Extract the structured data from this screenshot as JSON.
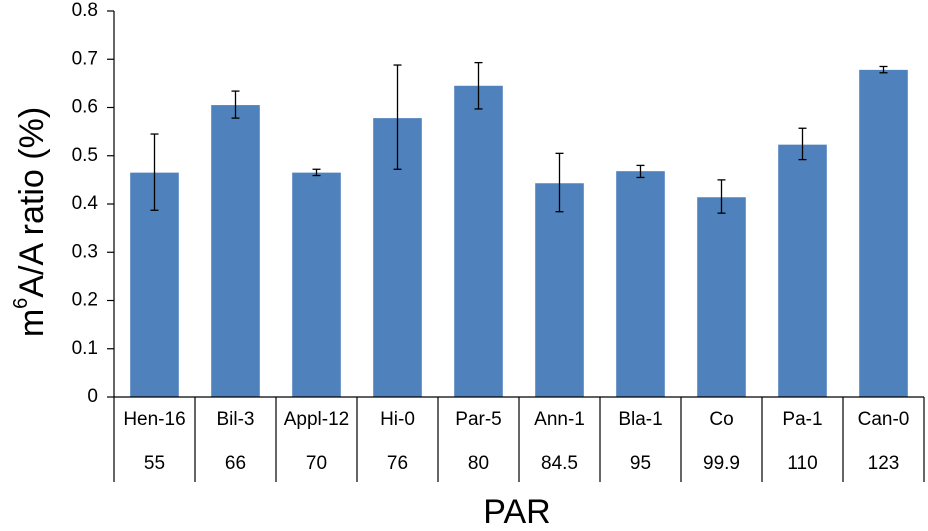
{
  "chart_data": {
    "type": "bar",
    "categories": [
      "Hen-16",
      "Bil-3",
      "Appl-12",
      "Hi-0",
      "Par-5",
      "Ann-1",
      "Bla-1",
      "Co",
      "Pa-1",
      "Can-0"
    ],
    "par_values": [
      "55",
      "66",
      "70",
      "76",
      "80",
      "84.5",
      "95",
      "99.9",
      "110",
      "123"
    ],
    "series": [
      {
        "values": [
          0.465,
          0.605,
          0.465,
          0.578,
          0.645,
          0.443,
          0.468,
          0.414,
          0.523,
          0.678
        ],
        "error_low": [
          0.387,
          0.578,
          0.459,
          0.472,
          0.597,
          0.384,
          0.455,
          0.381,
          0.492,
          0.672
        ],
        "error_high": [
          0.545,
          0.634,
          0.472,
          0.688,
          0.693,
          0.505,
          0.48,
          0.45,
          0.557,
          0.685
        ]
      }
    ],
    "yticks": [
      "0",
      "0.1",
      "0.2",
      "0.3",
      "0.4",
      "0.5",
      "0.6",
      "0.7",
      "0.8"
    ],
    "ylim": [
      0,
      0.8
    ],
    "ylabel": "m6A/A ratio (%)",
    "ylabel_base": "m",
    "ylabel_sup": "6",
    "ylabel_rest": "A/A ratio (%)",
    "xlabel": "PAR",
    "grid": false,
    "colors": {
      "bar": "#4f81bd",
      "axis": "#000000",
      "error": "#000000"
    }
  }
}
